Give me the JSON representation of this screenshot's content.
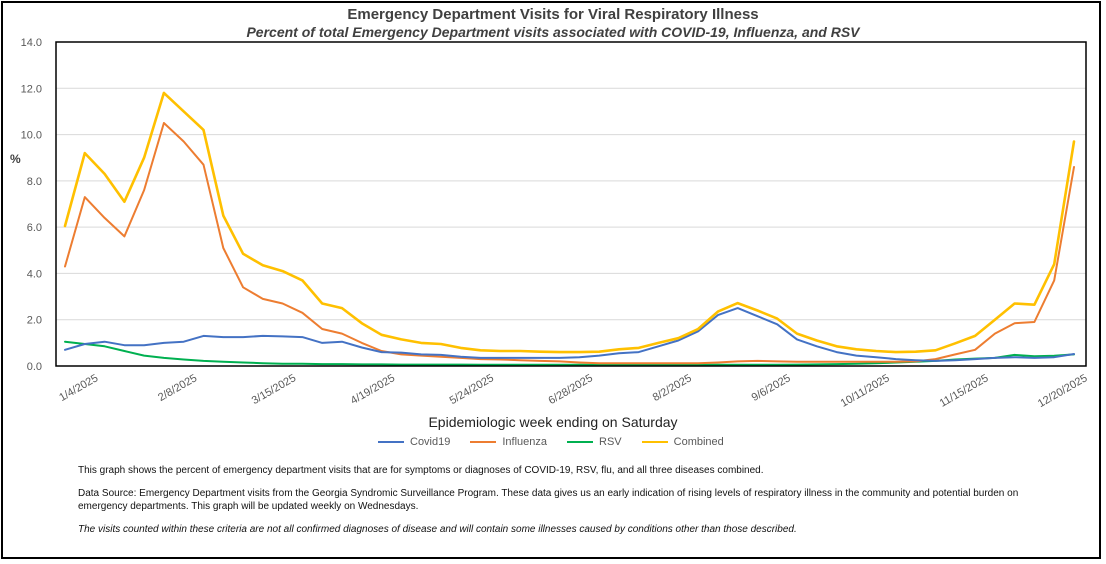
{
  "chart_data": {
    "type": "line",
    "title": "Emergency Department Visits for Viral Respiratory Illness",
    "subtitle": "Percent of total Emergency Department visits associated with COVID-19, Influenza, and RSV",
    "xlabel": "Epidemiologic  week ending on Saturday",
    "ylabel": "%",
    "ylim": [
      0,
      14
    ],
    "y_ticks": [
      "0.0",
      "2.0",
      "4.0",
      "6.0",
      "8.0",
      "10.0",
      "12.0",
      "14.0"
    ],
    "x_tick_labels": [
      "1/4/2025",
      "2/8/2025",
      "3/15/2025",
      "4/19/2025",
      "5/24/2025",
      "6/28/2025",
      "8/2/2025",
      "9/6/2025",
      "10/11/2025",
      "11/15/2025",
      "12/20/2025"
    ],
    "x_tick_week_index": [
      1,
      6,
      11,
      16,
      21,
      26,
      31,
      36,
      41,
      46,
      51
    ],
    "grid": true,
    "legend_position": "bottom",
    "series": [
      {
        "name": "Covid19",
        "color": "#4472C4",
        "values": [
          0.7,
          0.95,
          1.05,
          0.9,
          0.9,
          1.0,
          1.05,
          1.3,
          1.25,
          1.25,
          1.3,
          1.28,
          1.25,
          1.0,
          1.05,
          0.8,
          0.6,
          0.58,
          0.5,
          0.48,
          0.4,
          0.35,
          0.35,
          0.35,
          0.35,
          0.35,
          0.38,
          0.45,
          0.55,
          0.6,
          0.85,
          1.1,
          1.5,
          2.2,
          2.5,
          2.15,
          1.8,
          1.15,
          0.85,
          0.6,
          0.45,
          0.38,
          0.3,
          0.25,
          0.22,
          0.25,
          0.3,
          0.35,
          0.38,
          0.35,
          0.38,
          0.52
        ]
      },
      {
        "name": "Influenza",
        "color": "#ED7D31",
        "values": [
          4.3,
          7.3,
          6.4,
          5.6,
          7.6,
          10.5,
          9.7,
          8.7,
          5.1,
          3.4,
          2.9,
          2.7,
          2.3,
          1.6,
          1.4,
          1.0,
          0.65,
          0.5,
          0.45,
          0.4,
          0.35,
          0.3,
          0.28,
          0.25,
          0.22,
          0.2,
          0.15,
          0.12,
          0.12,
          0.12,
          0.12,
          0.12,
          0.12,
          0.15,
          0.2,
          0.22,
          0.2,
          0.18,
          0.18,
          0.18,
          0.18,
          0.18,
          0.18,
          0.2,
          0.3,
          0.5,
          0.7,
          1.4,
          1.85,
          1.9,
          3.7,
          8.6
        ]
      },
      {
        "name": "RSV",
        "color": "#00B050",
        "values": [
          1.05,
          0.95,
          0.85,
          0.65,
          0.45,
          0.35,
          0.28,
          0.22,
          0.18,
          0.15,
          0.12,
          0.1,
          0.1,
          0.08,
          0.08,
          0.07,
          0.07,
          0.06,
          0.06,
          0.06,
          0.06,
          0.05,
          0.05,
          0.05,
          0.05,
          0.05,
          0.05,
          0.05,
          0.05,
          0.05,
          0.05,
          0.05,
          0.05,
          0.05,
          0.05,
          0.05,
          0.05,
          0.06,
          0.07,
          0.08,
          0.1,
          0.12,
          0.15,
          0.18,
          0.22,
          0.28,
          0.32,
          0.35,
          0.48,
          0.42,
          0.44,
          0.5
        ]
      },
      {
        "name": "Combined",
        "color": "#FFC000",
        "values": [
          6.05,
          9.2,
          8.3,
          7.1,
          9.0,
          11.8,
          11.0,
          10.2,
          6.5,
          4.85,
          4.35,
          4.1,
          3.7,
          2.7,
          2.5,
          1.85,
          1.35,
          1.15,
          1.0,
          0.95,
          0.78,
          0.68,
          0.65,
          0.65,
          0.62,
          0.6,
          0.6,
          0.62,
          0.72,
          0.78,
          1.0,
          1.2,
          1.6,
          2.35,
          2.72,
          2.4,
          2.05,
          1.4,
          1.1,
          0.85,
          0.72,
          0.65,
          0.6,
          0.62,
          0.68,
          0.98,
          1.3,
          2.0,
          2.7,
          2.65,
          4.4,
          9.7
        ]
      }
    ]
  },
  "notes": {
    "description": "This graph shows the percent of emergency department visits that are for symptoms or diagnoses of COVID-19, RSV, flu, and all three diseases combined.",
    "source": "Data Source: Emergency Department visits from the Georgia Syndromic Surveillance Program. These data gives us an early indication of rising levels of respiratory illness in the community and potential burden on emergency departments. This graph will be updated weekly on Wednesdays.",
    "disclaimer": "The visits counted within these criteria are not all confirmed diagnoses of disease and will contain some illnesses caused by conditions other than those described."
  }
}
